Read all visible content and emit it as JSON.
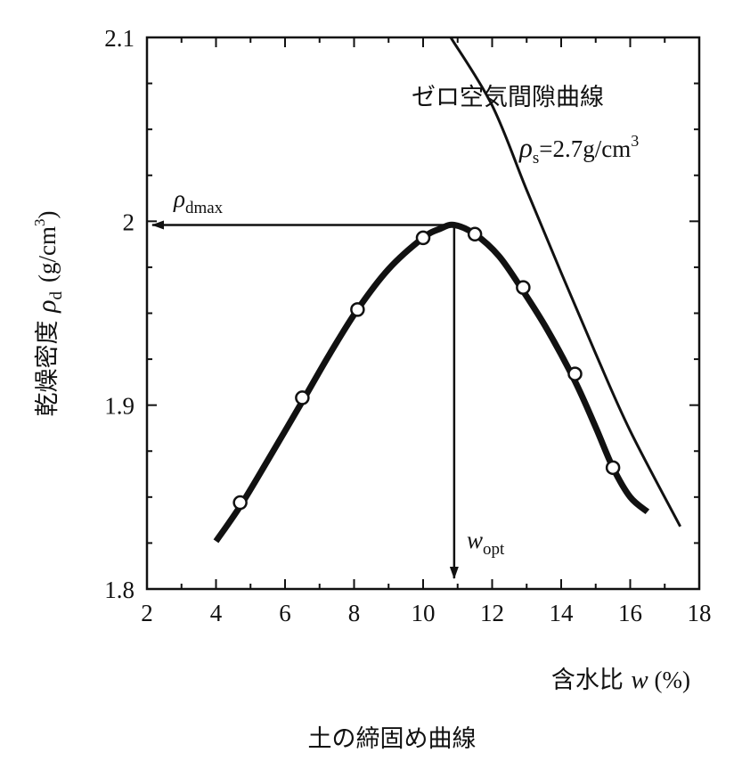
{
  "chart_data": {
    "type": "line",
    "title": "土の締固め曲線",
    "xlabel": {
      "prefix": "含水比 ",
      "symbol": "w",
      "unit": " (%)"
    },
    "ylabel": {
      "prefix": "乾燥密度 ",
      "symbol": "ρ",
      "subscript": "d",
      "unit": "(g/cm",
      "sup": "3",
      "close": ")"
    },
    "xlim": [
      2,
      18
    ],
    "ylim": [
      1.8,
      2.1
    ],
    "xticks": [
      "2",
      "4",
      "6",
      "8",
      "10",
      "12",
      "14",
      "16",
      "18"
    ],
    "yticks": [
      "1.8",
      "1.9",
      "2",
      "2.1"
    ],
    "grid": false,
    "series": [
      {
        "x": [
          4.7,
          6.5,
          8.1,
          10.0,
          11.5,
          12.9,
          14.4,
          15.5
        ],
        "y": [
          1.847,
          1.904,
          1.952,
          1.991,
          1.993,
          1.964,
          1.917,
          1.866
        ]
      }
    ],
    "fit_curve": {
      "x": [
        4.0,
        4.7,
        5.5,
        6.5,
        7.3,
        8.1,
        9.0,
        10.0,
        10.5,
        10.9,
        11.5,
        12.2,
        12.9,
        13.6,
        14.4,
        15.0,
        15.5,
        16.0,
        16.5
      ],
      "y": [
        1.826,
        1.845,
        1.87,
        1.902,
        1.928,
        1.952,
        1.974,
        1.991,
        1.996,
        1.998,
        1.993,
        1.981,
        1.962,
        1.941,
        1.913,
        1.888,
        1.866,
        1.85,
        1.842
      ]
    },
    "zero_air_void": {
      "label": "ゼロ空気間隙曲線",
      "rho_s_symbol": "ρ",
      "rho_s_subscript": "s",
      "rho_s_value": "=2.7g/cm",
      "rho_s_sup": "3",
      "x": [
        10.8,
        12.0,
        13.0,
        14.0,
        15.0,
        16.0,
        17.45
      ],
      "y": [
        2.1,
        2.063,
        2.017,
        1.972,
        1.928,
        1.886,
        1.834
      ]
    },
    "rho_dmax": {
      "symbol": "ρ",
      "subscript": "dmax",
      "value": 1.998
    },
    "w_opt": {
      "symbol": "w",
      "subscript": "opt",
      "value": 10.9
    }
  }
}
